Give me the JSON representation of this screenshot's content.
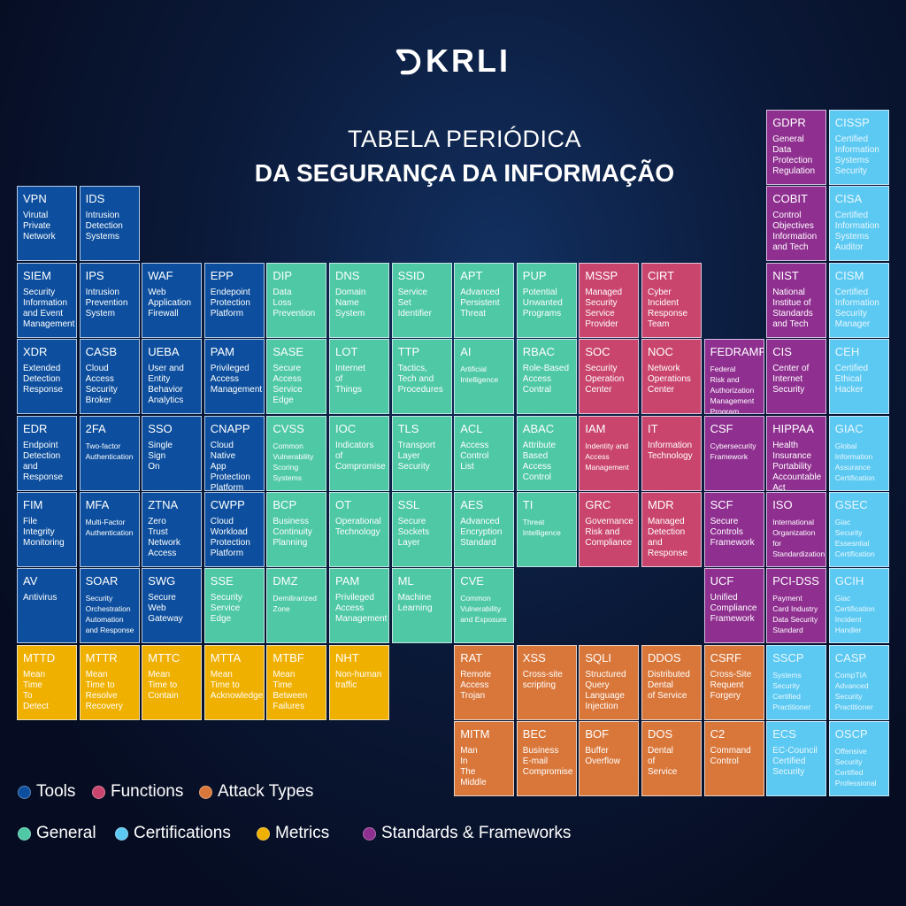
{
  "logo": {
    "text": "KRLI"
  },
  "title": {
    "line1": "TABELA PERIÓDICA",
    "line2": "DA SEGURANÇA DA INFORMAÇÃO"
  },
  "colors": {
    "tools": "#0d4f9e",
    "functions": "#c9456e",
    "attack": "#d9773a",
    "general": "#4ec8a5",
    "certifications": "#5cc9f2",
    "metrics": "#f0b000",
    "standards": "#8f2f90"
  },
  "legend": [
    {
      "key": "tools",
      "label": "Tools"
    },
    {
      "key": "functions",
      "label": "Functions"
    },
    {
      "key": "attack",
      "label": "Attack Types"
    },
    {
      "key": "general",
      "label": "General"
    },
    {
      "key": "certifications",
      "label": "Certifications"
    },
    {
      "key": "metrics",
      "label": "Metrics"
    },
    {
      "key": "standards",
      "label": "Standards & Frameworks"
    }
  ],
  "elements": [
    {
      "sym": "GDPR",
      "name": "General\nData\nProtection\nRegulation",
      "cat": "standards"
    },
    {
      "sym": "CISSP",
      "name": "Certified\nInformation\nSystems\nSecurity",
      "cat": "certifications"
    },
    {
      "sym": "VPN",
      "name": "Virutal\nPrivate\nNetwork",
      "cat": "tools"
    },
    {
      "sym": "IDS",
      "name": "Intrusion\nDetection\nSystems",
      "cat": "tools"
    },
    {
      "sym": "COBIT",
      "name": "Control\nObjectives\nInformation\nand Tech",
      "cat": "standards"
    },
    {
      "sym": "CISA",
      "name": "Certified\nInformation\nSystems\nAuditor",
      "cat": "certifications"
    },
    {
      "sym": "SIEM",
      "name": "Security\nInformation\nand Event\nManagement",
      "cat": "tools"
    },
    {
      "sym": "IPS",
      "name": "Intrusion\nPrevention\nSystem",
      "cat": "tools"
    },
    {
      "sym": "WAF",
      "name": "Web\nApplication\nFirewall",
      "cat": "tools"
    },
    {
      "sym": "EPP",
      "name": "Endepoint\nProtection\nPlatform",
      "cat": "tools"
    },
    {
      "sym": "DIP",
      "name": "Data\nLoss\nPrevention",
      "cat": "general"
    },
    {
      "sym": "DNS",
      "name": "Domain\nName\nSystem",
      "cat": "general"
    },
    {
      "sym": "SSID",
      "name": "Service\nSet\nIdentifier",
      "cat": "general"
    },
    {
      "sym": "APT",
      "name": "Advanced\nPersistent\nThreat",
      "cat": "general"
    },
    {
      "sym": "PUP",
      "name": "Potential\nUnwanted\nPrograms",
      "cat": "general"
    },
    {
      "sym": "MSSP",
      "name": "Managed\nSecurity\nService\nProvider",
      "cat": "functions"
    },
    {
      "sym": "CIRT",
      "name": "Cyber\nIncident\nResponse\nTeam",
      "cat": "functions"
    },
    {
      "sym": "NIST",
      "name": "National\nInstitue of\nStandards\nand Tech",
      "cat": "standards"
    },
    {
      "sym": "CISM",
      "name": "Certified\nInformation\nSecurity\nManager",
      "cat": "certifications"
    },
    {
      "sym": "XDR",
      "name": "Extended\nDetection\nResponse",
      "cat": "tools"
    },
    {
      "sym": "CASB",
      "name": "Cloud\nAccess\nSecurity\nBroker",
      "cat": "tools"
    },
    {
      "sym": "UEBA",
      "name": "User and\nEntity\nBehavior\nAnalytics",
      "cat": "tools"
    },
    {
      "sym": "PAM",
      "name": "Privileged\nAccess\nManagement",
      "cat": "tools"
    },
    {
      "sym": "SASE",
      "name": "Secure\nAccess\nService\nEdge",
      "cat": "general"
    },
    {
      "sym": "LOT",
      "name": "Internet\nof\nThings",
      "cat": "general"
    },
    {
      "sym": "TTP",
      "name": "Tactics,\nTech and\nProcedures",
      "cat": "general"
    },
    {
      "sym": "AI",
      "name": "Artificial\nIntelligence",
      "cat": "general"
    },
    {
      "sym": "RBAC",
      "name": "Role-Based\nAccess\nContral",
      "cat": "general"
    },
    {
      "sym": "SOC",
      "name": "Security\nOperation\nCenter",
      "cat": "functions"
    },
    {
      "sym": "NOC",
      "name": "Network\nOperations\nCenter",
      "cat": "functions"
    },
    {
      "sym": "FEDRAMP",
      "name": "Federal\nRisk and\nAuthorization\nManagement\nProgram",
      "cat": "standards"
    },
    {
      "sym": "CIS",
      "name": "Center of\nInternet\nSecurity",
      "cat": "standards"
    },
    {
      "sym": "CEH",
      "name": "Certified\nEthical\nHacker",
      "cat": "certifications"
    },
    {
      "sym": "EDR",
      "name": "Endpoint\nDetection\nand\nResponse",
      "cat": "tools"
    },
    {
      "sym": "2FA",
      "name": "Two-factor\nAuthentication",
      "cat": "tools"
    },
    {
      "sym": "SSO",
      "name": "Single\nSign\nOn",
      "cat": "tools"
    },
    {
      "sym": "CNAPP",
      "name": "Cloud\nNative\nApp\nProtection\nPlatform",
      "cat": "tools"
    },
    {
      "sym": "CVSS",
      "name": "Common\nVulnerability\nScoring\nSystems",
      "cat": "general"
    },
    {
      "sym": "IOC",
      "name": "Indicators\nof\nCompromise",
      "cat": "general"
    },
    {
      "sym": "TLS",
      "name": "Transport\nLayer\nSecurity",
      "cat": "general"
    },
    {
      "sym": "ACL",
      "name": "Access\nControl\nList",
      "cat": "general"
    },
    {
      "sym": "ABAC",
      "name": "Attribute\nBased\nAccess\nControl",
      "cat": "general"
    },
    {
      "sym": "IAM",
      "name": "Indentity and\nAccess\nManagement",
      "cat": "functions"
    },
    {
      "sym": "IT",
      "name": "Information\nTechnology",
      "cat": "functions"
    },
    {
      "sym": "CSF",
      "name": "Cybersecurity\nFramework",
      "cat": "standards"
    },
    {
      "sym": "HIPPAA",
      "name": "Health\nInsurance\nPortability\nAccountable\nAct",
      "cat": "standards"
    },
    {
      "sym": "GIAC",
      "name": "Global\nInformation\nAssurance\nCertification",
      "cat": "certifications"
    },
    {
      "sym": "FIM",
      "name": "File\nIntegrity\nMonitoring",
      "cat": "tools"
    },
    {
      "sym": "MFA",
      "name": "Multi-Factor\nAuthentication",
      "cat": "tools"
    },
    {
      "sym": "ZTNA",
      "name": "Zero\nTrust\nNetwork\nAccess",
      "cat": "tools"
    },
    {
      "sym": "CWPP",
      "name": "Cloud\nWorkload\nProtection\nPlatform",
      "cat": "tools"
    },
    {
      "sym": "BCP",
      "name": "Business\nContinuity\nPlanning",
      "cat": "general"
    },
    {
      "sym": "OT",
      "name": "Operational\nTechnology",
      "cat": "general"
    },
    {
      "sym": "SSL",
      "name": "Secure\nSockets\nLayer",
      "cat": "general"
    },
    {
      "sym": "AES",
      "name": "Advanced\nEncryption\nStandard",
      "cat": "general"
    },
    {
      "sym": "TI",
      "name": "Threat\nIntelligence",
      "cat": "general"
    },
    {
      "sym": "GRC",
      "name": "Governance\nRisk and\nCompliance",
      "cat": "functions"
    },
    {
      "sym": "MDR",
      "name": "Managed\nDetection\nand\nResponse",
      "cat": "functions"
    },
    {
      "sym": "SCF",
      "name": "Secure\nControls\nFramework",
      "cat": "standards"
    },
    {
      "sym": "ISO",
      "name": "International\nOrganization\nfor\nStandardization",
      "cat": "standards"
    },
    {
      "sym": "GSEC",
      "name": "Giac\nSecurity\nEssesntial\nCertification",
      "cat": "certifications"
    },
    {
      "sym": "AV",
      "name": "Antivirus",
      "cat": "tools"
    },
    {
      "sym": "SOAR",
      "name": "Security\nOrchestration\nAutomation\nand Response",
      "cat": "tools"
    },
    {
      "sym": "SWG",
      "name": "Secure\nWeb\nGateway",
      "cat": "tools"
    },
    {
      "sym": "SSE",
      "name": "Security\nService\nEdge",
      "cat": "general"
    },
    {
      "sym": "DMZ",
      "name": "Demilirarized\nZone",
      "cat": "general"
    },
    {
      "sym": "PAM",
      "name": "Privileged\nAccess\nManagement",
      "cat": "general"
    },
    {
      "sym": "ML",
      "name": "Machine\nLearning",
      "cat": "general"
    },
    {
      "sym": "CVE",
      "name": "Common\nVulnerability\nand Exposure",
      "cat": "general"
    },
    {
      "sym": "UCF",
      "name": "Unified\nCompliance\nFramework",
      "cat": "standards"
    },
    {
      "sym": "PCI-DSS",
      "name": "Payment\nCard Industry\nData Security\nStandard",
      "cat": "standards"
    },
    {
      "sym": "GCIH",
      "name": "Giac\nCertification\nIncident\nHandler",
      "cat": "certifications"
    },
    {
      "sym": "MTTD",
      "name": "Mean\nTime\nTo\nDetect",
      "cat": "metrics"
    },
    {
      "sym": "MTTR",
      "name": "Mean\nTime to\nResolve\nRecovery",
      "cat": "metrics"
    },
    {
      "sym": "MTTC",
      "name": "Mean\nTime to\nContain",
      "cat": "metrics"
    },
    {
      "sym": "MTTA",
      "name": "Mean\nTime to\nAcknowledge",
      "cat": "metrics"
    },
    {
      "sym": "MTBF",
      "name": "Mean\nTime\nBetween\nFailures",
      "cat": "metrics"
    },
    {
      "sym": "NHT",
      "name": "Non-human\ntraffic",
      "cat": "metrics"
    },
    {
      "sym": "RAT",
      "name": "Remote\nAccess\nTrojan",
      "cat": "attack"
    },
    {
      "sym": "XSS",
      "name": "Cross-site\nscripting",
      "cat": "attack"
    },
    {
      "sym": "SQLI",
      "name": "Structured\nQuery\nLanguage\nInjection",
      "cat": "attack"
    },
    {
      "sym": "DDOS",
      "name": "Distributed\nDental\nof Service",
      "cat": "attack"
    },
    {
      "sym": "CSRF",
      "name": "Cross-Site\nRequent\nForgery",
      "cat": "attack"
    },
    {
      "sym": "SSCP",
      "name": "Systems\nSecurity\nCertified\nPractitioner",
      "cat": "certifications"
    },
    {
      "sym": "CASP",
      "name": "CompTIA\nAdvanced\nSecurity\nPractitioner",
      "cat": "certifications"
    },
    {
      "sym": "MITM",
      "name": "Man\nIn\nThe\nMiddle",
      "cat": "attack"
    },
    {
      "sym": "BEC",
      "name": "Business\nE-mail\nCompromise",
      "cat": "attack"
    },
    {
      "sym": "BOF",
      "name": "Buffer\nOverflow",
      "cat": "attack"
    },
    {
      "sym": "DOS",
      "name": "Dental\nof\nService",
      "cat": "attack"
    },
    {
      "sym": "C2",
      "name": "Command\nControl",
      "cat": "attack"
    },
    {
      "sym": "ECS",
      "name": "EC-Council\nCertified\nSecurity",
      "cat": "certifications"
    },
    {
      "sym": "OSCP",
      "name": "Offensive\nSecurity\nCertified\nProfessional",
      "cat": "certifications"
    }
  ]
}
